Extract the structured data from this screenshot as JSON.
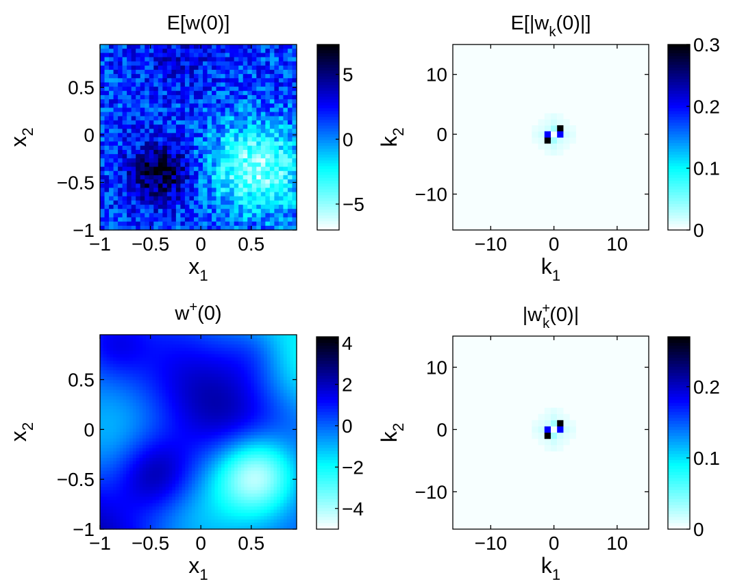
{
  "chart_data": [
    {
      "type": "heatmap",
      "title": "E[w(0)]",
      "xlabel": {
        "base": "x",
        "sub": "1"
      },
      "ylabel": {
        "base": "x",
        "sub": "2"
      },
      "xlim": [
        -1,
        0.95
      ],
      "ylim": [
        -1,
        0.95
      ],
      "xticks": [
        -1,
        -0.5,
        0,
        0.5
      ],
      "xtick_labels": [
        "−1",
        "−0.5",
        "0",
        "0.5"
      ],
      "yticks": [
        -1,
        -0.5,
        0,
        0.5
      ],
      "ytick_labels": [
        "−1",
        "−0.5",
        "0",
        "0.5"
      ],
      "colorbar": {
        "min": -7,
        "max": 7.3,
        "ticks": [
          -5,
          0,
          5
        ],
        "tick_labels": [
          "−5",
          "0",
          "5"
        ]
      },
      "colormap": [
        "#ffffff",
        "#00ffff",
        "#0000ff",
        "#000000"
      ],
      "field": "noisy",
      "grid_cells": 44,
      "min_region": [
        0.55,
        -0.35
      ],
      "max_region": [
        -0.4,
        -0.4
      ]
    },
    {
      "type": "heatmap",
      "title": {
        "base": "E[|w",
        "sub": "k",
        "tail": "(0)|]"
      },
      "xlabel": {
        "base": "k",
        "sub": "1"
      },
      "ylabel": {
        "base": "k",
        "sub": "2"
      },
      "xlim": [
        -16,
        15
      ],
      "ylim": [
        -16,
        15
      ],
      "xticks": [
        -10,
        0,
        10
      ],
      "xtick_labels": [
        "−10",
        "0",
        "10"
      ],
      "yticks": [
        -10,
        0,
        10
      ],
      "ytick_labels": [
        "−10",
        "0",
        "10"
      ],
      "colorbar": {
        "min": 0,
        "max": 0.3,
        "ticks": [
          0,
          0.1,
          0.2,
          0.3
        ],
        "tick_labels": [
          "0",
          "0.1",
          "0.2",
          "0.3"
        ]
      },
      "colormap": [
        "#ffffff",
        "#00ffff",
        "#0000ff",
        "#000000"
      ],
      "field": "spectrum",
      "peaks": [
        {
          "k1": -1,
          "k2": -1,
          "value": 0.3
        },
        {
          "k1": 1,
          "k2": 1,
          "value": 0.3
        },
        {
          "k1": 1,
          "k2": 0,
          "value": 0.2
        },
        {
          "k1": -1,
          "k2": 0,
          "value": 0.2
        }
      ]
    },
    {
      "type": "heatmap",
      "title": {
        "base": "w",
        "sup": "+",
        "tail": "(0)"
      },
      "xlabel": {
        "base": "x",
        "sub": "1"
      },
      "ylabel": {
        "base": "x",
        "sub": "2"
      },
      "xlim": [
        -1,
        0.95
      ],
      "ylim": [
        -1,
        0.95
      ],
      "xticks": [
        -1,
        -0.5,
        0,
        0.5
      ],
      "xtick_labels": [
        "−1",
        "−0.5",
        "0",
        "0.5"
      ],
      "yticks": [
        -1,
        -0.5,
        0,
        0.5
      ],
      "ytick_labels": [
        "−1",
        "−0.5",
        "0",
        "0.5"
      ],
      "colorbar": {
        "min": -5,
        "max": 4.3,
        "ticks": [
          -4,
          -2,
          0,
          2,
          4
        ],
        "tick_labels": [
          "−4",
          "−2",
          "0",
          "2",
          "4"
        ]
      },
      "colormap": [
        "#ffffff",
        "#00ffff",
        "#0000ff",
        "#000000"
      ],
      "field": "smooth",
      "min_region": [
        0.55,
        -0.45
      ],
      "max_region": [
        -0.45,
        -0.45
      ]
    },
    {
      "type": "heatmap",
      "title": {
        "base": "|w",
        "sup": "+",
        "sub": "k",
        "tail": "(0)|"
      },
      "xlabel": {
        "base": "k",
        "sub": "1"
      },
      "ylabel": {
        "base": "k",
        "sub": "2"
      },
      "xlim": [
        -16,
        15
      ],
      "ylim": [
        -16,
        15
      ],
      "xticks": [
        -10,
        0,
        10
      ],
      "xtick_labels": [
        "−10",
        "0",
        "10"
      ],
      "yticks": [
        -10,
        0,
        10
      ],
      "ytick_labels": [
        "−10",
        "0",
        "10"
      ],
      "colorbar": {
        "min": 0,
        "max": 0.27,
        "ticks": [
          0,
          0.1,
          0.2
        ],
        "tick_labels": [
          "0",
          "0.1",
          "0.2"
        ]
      },
      "colormap": [
        "#ffffff",
        "#00ffff",
        "#0000ff",
        "#000000"
      ],
      "field": "spectrum",
      "peaks": [
        {
          "k1": -1,
          "k2": -1,
          "value": 0.27
        },
        {
          "k1": 1,
          "k2": 1,
          "value": 0.27
        },
        {
          "k1": 1,
          "k2": 0,
          "value": 0.18
        },
        {
          "k1": -1,
          "k2": 0,
          "value": 0.18
        }
      ]
    }
  ]
}
